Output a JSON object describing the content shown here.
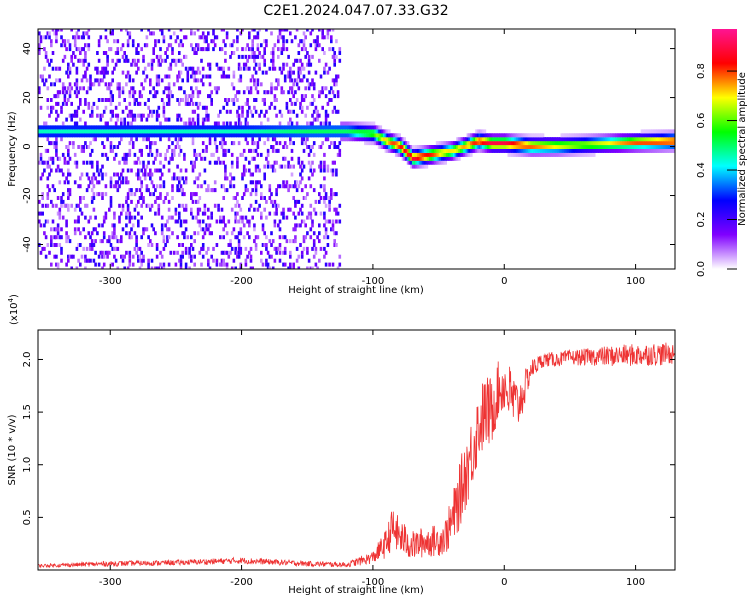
{
  "title": "C2E1.2024.047.07.33.G32",
  "chart_data": [
    {
      "type": "heatmap",
      "xlabel": "Height of straight line (km)",
      "ylabel": "Frequency (Hz)",
      "xlim": [
        -355,
        130
      ],
      "ylim": [
        -50,
        48
      ],
      "x_ticks": [
        -300,
        -200,
        -100,
        0,
        100
      ],
      "y_ticks": [
        -40,
        -20,
        0,
        20,
        40
      ],
      "colorbar": {
        "label": "Normalized spectral amplitude",
        "range": [
          0.0,
          0.97
        ],
        "ticks": [
          "0.0",
          "0.2",
          "0.4",
          "0.6",
          "0.8"
        ],
        "tick_values": [
          0.0,
          0.2,
          0.4,
          0.6,
          0.8
        ],
        "colormap": [
          "#ffffff",
          "#8000ff",
          "#0000ff",
          "#00ffff",
          "#00ff00",
          "#ffff00",
          "#ff0000",
          "#ff1493"
        ]
      },
      "ridge": {
        "x": [
          -355,
          -300,
          -250,
          -200,
          -150,
          -120,
          -100,
          -90,
          -80,
          -70,
          -60,
          -50,
          -40,
          -30,
          -20,
          -10,
          0,
          20,
          40,
          60,
          80,
          100,
          130
        ],
        "y": [
          6,
          6,
          6,
          6,
          6,
          6,
          5,
          2,
          0,
          -5,
          -4,
          -3,
          -2,
          0,
          2,
          1,
          1,
          0,
          0,
          0.5,
          1,
          1.5,
          2
        ],
        "peak_amplitude": [
          0.45,
          0.45,
          0.45,
          0.45,
          0.5,
          0.5,
          0.6,
          0.75,
          0.85,
          0.9,
          0.85,
          0.75,
          0.7,
          0.75,
          0.85,
          0.9,
          0.9,
          0.8,
          0.7,
          0.65,
          0.7,
          0.8,
          0.85
        ]
      },
      "noise_region_x": [
        -355,
        -125
      ]
    },
    {
      "type": "line",
      "xlabel": "Height of straight line (km)",
      "ylabel": "SNR (10 * v/v)",
      "y_multiplier": "(x10",
      "y_multiplier_exp": "4",
      "y_multiplier_close": ")",
      "xlim": [
        -355,
        130
      ],
      "ylim": [
        0,
        22800
      ],
      "x_ticks": [
        -300,
        -200,
        -100,
        0,
        100
      ],
      "y_ticks": [
        5000,
        10000,
        15000,
        20000
      ],
      "y_tick_labels": [
        "0.5",
        "1.0",
        "1.5",
        "2.0"
      ],
      "line_color": "#ee3333",
      "series": [
        {
          "x": [
            -355,
            -300,
            -250,
            -200,
            -150,
            -120,
            -100,
            -90,
            -85,
            -80,
            -70,
            -60,
            -50,
            -45,
            -40,
            -35,
            -30,
            -25,
            -20,
            -15,
            -10,
            -5,
            0,
            5,
            10,
            15,
            20,
            25,
            30,
            40,
            50,
            60,
            70,
            80,
            90,
            100,
            110,
            120,
            130
          ],
          "y": [
            400,
            600,
            700,
            900,
            600,
            500,
            1200,
            2500,
            4000,
            3200,
            2300,
            2700,
            2800,
            3200,
            4500,
            6500,
            9000,
            11000,
            13500,
            15000,
            15000,
            17000,
            17500,
            16500,
            15500,
            17000,
            19000,
            19500,
            20000,
            20000,
            20200,
            20200,
            20300,
            20300,
            20400,
            20400,
            20500,
            20500,
            20600
          ],
          "amplitude": [
            150,
            250,
            250,
            300,
            250,
            250,
            600,
            1400,
            2000,
            1800,
            1400,
            1500,
            1500,
            1700,
            2500,
            3000,
            3500,
            3500,
            3500,
            3500,
            3500,
            2800,
            2500,
            3000,
            2500,
            1800,
            1000,
            800,
            700,
            700,
            700,
            800,
            900,
            1000,
            1000,
            1100,
            1100,
            1100,
            1000
          ]
        }
      ]
    }
  ]
}
